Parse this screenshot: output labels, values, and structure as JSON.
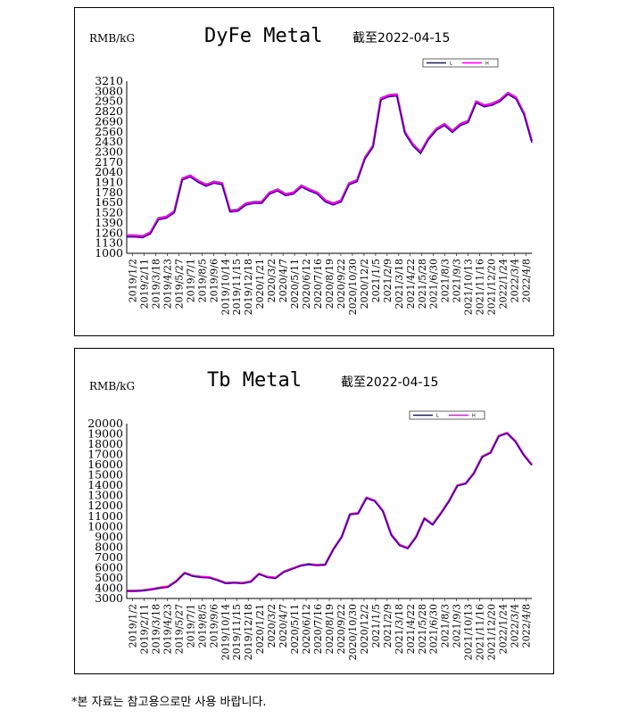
{
  "colors": {
    "high": "#ff00ff",
    "low": "#1a1a66",
    "axis": "#000000"
  },
  "footnote": "*본 자료는 참고용으로만 사용 바랍니다.",
  "chart_data": [
    {
      "type": "line",
      "title": "DyFe Metal",
      "unit": "RMB/kG",
      "as_of": "截至2022-04-15",
      "legend": {
        "placement": "top-right",
        "entries": [
          "L",
          "H"
        ]
      },
      "ylim": [
        1000,
        3210
      ],
      "yticks": [
        1000,
        1130,
        1260,
        1390,
        1520,
        1650,
        1780,
        1910,
        2040,
        2170,
        2300,
        2430,
        2560,
        2690,
        2820,
        2950,
        3080,
        3210
      ],
      "xticks": [
        "2019/1/2",
        "2019/2/11",
        "2019/3/18",
        "2019/4/23",
        "2019/5/27",
        "2019/7/1",
        "2019/8/5",
        "2019/9/6",
        "2019/10/14",
        "2019/11/15",
        "2019/12/18",
        "2020/1/21",
        "2020/3/2",
        "2020/4/7",
        "2020/5/11",
        "2020/6/12",
        "2020/7/16",
        "2020/8/19",
        "2020/9/22",
        "2020/10/30",
        "2020/12/2",
        "2021/1/5",
        "2021/2/9",
        "2021/3/18",
        "2021/4/22",
        "2021/5/28",
        "2021/6/30",
        "2021/8/3",
        "2021/9/3",
        "2021/10/13",
        "2021/11/16",
        "2021/12/20",
        "2022/1/24",
        "2022/3/4",
        "2022/4/8"
      ],
      "series": [
        {
          "name": "H",
          "values": [
            1230,
            1230,
            1220,
            1270,
            1450,
            1470,
            1540,
            1960,
            2000,
            1930,
            1880,
            1920,
            1900,
            1550,
            1560,
            1640,
            1660,
            1660,
            1780,
            1820,
            1760,
            1780,
            1870,
            1820,
            1780,
            1680,
            1640,
            1680,
            1900,
            1940,
            2230,
            2380,
            2990,
            3030,
            3040,
            2560,
            2400,
            2300,
            2480,
            2600,
            2660,
            2570,
            2660,
            2700,
            2950,
            2900,
            2920,
            2970,
            3060,
            3000,
            2800,
            2440
          ]
        },
        {
          "name": "L",
          "values": [
            1210,
            1210,
            1200,
            1250,
            1430,
            1450,
            1520,
            1940,
            1980,
            1910,
            1860,
            1900,
            1880,
            1530,
            1540,
            1620,
            1640,
            1640,
            1760,
            1800,
            1740,
            1760,
            1850,
            1800,
            1760,
            1660,
            1620,
            1660,
            1880,
            1920,
            2210,
            2360,
            2970,
            3010,
            3020,
            2540,
            2380,
            2280,
            2460,
            2580,
            2640,
            2550,
            2640,
            2680,
            2930,
            2880,
            2900,
            2950,
            3040,
            2980,
            2780,
            2420
          ]
        }
      ]
    },
    {
      "type": "line",
      "title": "Tb Metal",
      "unit": "RMB/kG",
      "as_of": "截至2022-04-15",
      "legend": {
        "placement": "top-right",
        "entries": [
          "L",
          "H"
        ]
      },
      "ylim": [
        3000,
        20000
      ],
      "yticks": [
        3000,
        4000,
        5000,
        6000,
        7000,
        8000,
        9000,
        10000,
        11000,
        12000,
        13000,
        14000,
        15000,
        16000,
        17000,
        18000,
        19000,
        20000
      ],
      "xticks": [
        "2019/1/2",
        "2019/2/11",
        "2019/3/18",
        "2019/4/23",
        "2019/5/27",
        "2019/7/1",
        "2019/8/5",
        "2019/9/6",
        "2019/10/14",
        "2019/11/15",
        "2019/12/18",
        "2020/1/21",
        "2020/3/2",
        "2020/4/7",
        "2020/5/11",
        "2020/6/12",
        "2020/7/16",
        "2020/8/19",
        "2020/9/22",
        "2020/10/30",
        "2020/12/2",
        "2021/1/5",
        "2021/2/9",
        "2021/3/18",
        "2021/4/22",
        "2021/5/28",
        "2021/6/30",
        "2021/8/3",
        "2021/9/3",
        "2021/10/13",
        "2021/11/16",
        "2021/12/20",
        "2022/1/24",
        "2022/3/4",
        "2022/4/8"
      ],
      "series": [
        {
          "name": "H",
          "values": [
            3750,
            3750,
            3800,
            3900,
            4050,
            4150,
            4700,
            5500,
            5200,
            5100,
            5050,
            4800,
            4500,
            4550,
            4500,
            4650,
            5400,
            5100,
            5000,
            5600,
            5900,
            6200,
            6350,
            6250,
            6300,
            7800,
            9000,
            11200,
            11300,
            12800,
            12500,
            11500,
            9200,
            8200,
            7900,
            9000,
            10800,
            10200,
            11300,
            12500,
            14000,
            14200,
            15200,
            16800,
            17200,
            18800,
            19100,
            18300,
            17000,
            16000
          ]
        },
        {
          "name": "L",
          "values": [
            3700,
            3700,
            3750,
            3850,
            4000,
            4100,
            4650,
            5450,
            5150,
            5050,
            5000,
            4750,
            4450,
            4500,
            4450,
            4600,
            5350,
            5050,
            4950,
            5550,
            5850,
            6150,
            6300,
            6200,
            6250,
            7750,
            8950,
            11150,
            11250,
            12750,
            12450,
            11450,
            9150,
            8150,
            7850,
            8950,
            10750,
            10150,
            11250,
            12450,
            13950,
            14150,
            15150,
            16750,
            17150,
            18750,
            19050,
            18250,
            16950,
            15950
          ]
        }
      ]
    }
  ]
}
